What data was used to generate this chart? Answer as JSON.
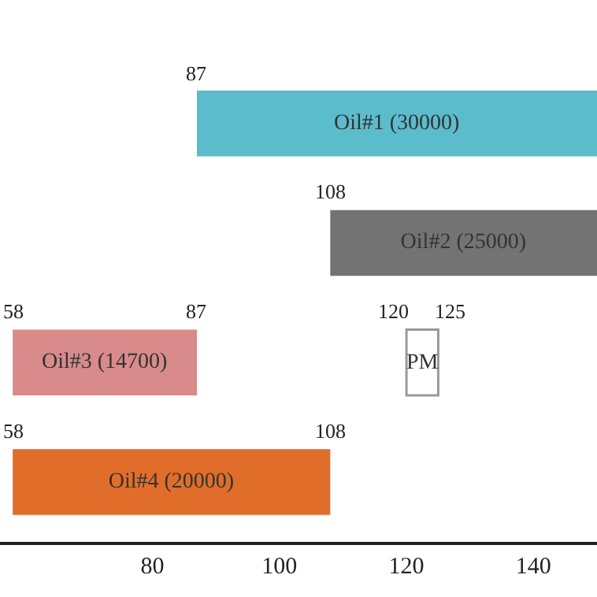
{
  "chart_data": {
    "type": "bar",
    "orientation": "horizontal",
    "categories": [
      null,
      null,
      null,
      null
    ],
    "values": [
      63,
      42,
      29,
      50
    ],
    "base": [
      87,
      108,
      58,
      58
    ],
    "colors": [
      "#5bbccc",
      "#737373",
      "#d98a8a",
      "#e06e2a"
    ],
    "value_labels": [
      "Oil#1 (30000)",
      "Oil#2 (25000)",
      "Oil#3 (14700)",
      "Oil#4 (20000)"
    ],
    "bands": [
      {
        "axis": "x",
        "from": 120,
        "to": 125,
        "label": "PM",
        "color": "#ffffff"
      }
    ],
    "xlim": [
      56,
      150
    ],
    "xticks": [
      80,
      100,
      120,
      140
    ],
    "annotations": [
      "87",
      "108",
      "58",
      "87",
      "120",
      "125",
      "58",
      "108"
    ]
  }
}
